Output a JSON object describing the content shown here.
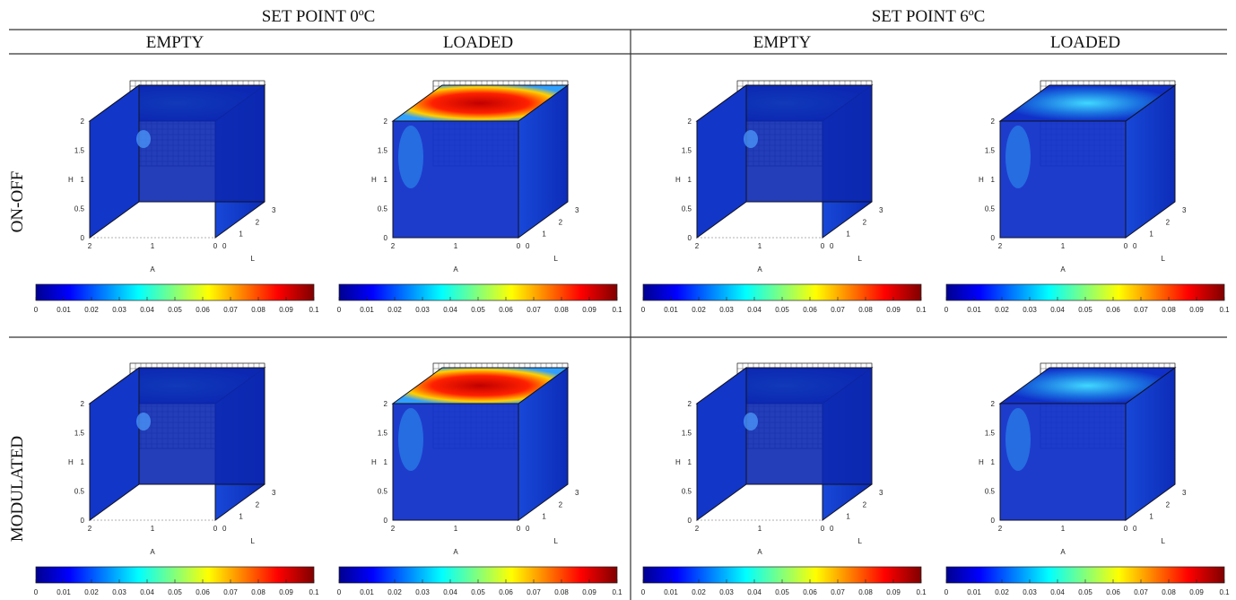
{
  "columns": [
    {
      "title": "SET POINT 0ºC",
      "subs": [
        "EMPTY",
        "LOADED"
      ]
    },
    {
      "title": "SET POINT 6ºC",
      "subs": [
        "EMPTY",
        "LOADED"
      ]
    }
  ],
  "rows": [
    "ON-OFF",
    "MODULATED"
  ],
  "axis_labels": {
    "h": "H",
    "a": "A",
    "l": "L"
  },
  "h_ticks": [
    "0",
    "0.5",
    "1",
    "1.5",
    "2"
  ],
  "a_ticks": [
    "2",
    "1",
    "0"
  ],
  "l_ticks": [
    "0",
    "1",
    "2",
    "3"
  ],
  "colorbar_ticks": [
    "0",
    "0.01",
    "0.02",
    "0.03",
    "0.04",
    "0.05",
    "0.06",
    "0.07",
    "0.08",
    "0.09",
    "0.1"
  ]
}
